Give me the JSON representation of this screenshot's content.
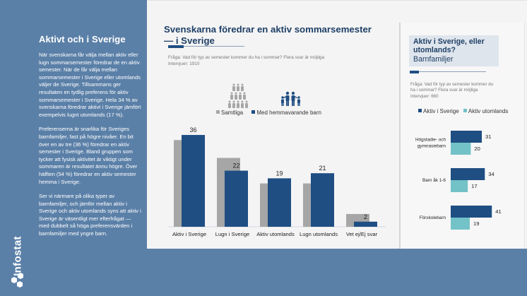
{
  "sidebar": {
    "heading": "Aktivt och i Sverige",
    "paragraphs": [
      "När svenskarna får välja mellan aktiv eller lugn sommarsemester föredrar de en aktiv semester. När de får välja mellan sommarsemester i Sverige eller utomlands väljer de Sverige. Tillsammans ger resultaten en tydlig preferens för aktiv sommarsemester i Sverige. Hela 34 % av svenskarna föredrar aktivt i Sverige jämfört exempelvis lugnt utomlands (17 %).",
      "Preferenserna är snarlika för Sveriges barnfamiljer, fast på högre nivåer. En bit över en av tre (36 %) föredrar en aktiv semester i Sverige. Bland gruppen som tycker att fysisk aktivitet är viktigt under sommaren är resultatet ännu högre. Över hälften (54 %) föredrar en aktiv semester hemma i Sverige.",
      "Ser vi närmare på olika typer av barnfamiljer, och jämför mellan aktiv i Sverige och aktiv utomlands syns att aktiv i Sverige är väsentligt mer efterfrågat — med dubbelt så höga preferensvärden i barnfamiljer med yngre barn."
    ],
    "logo_text": "Infostat"
  },
  "colors": {
    "background": "#5b80a8",
    "dark_blue": "#1f4e82",
    "gray": "#a6a6a6",
    "teal": "#73c2c8",
    "title_blue": "#1e3f66"
  },
  "chart_data": [
    {
      "type": "bar",
      "title": "Svenskarna föredrar en aktiv sommarsemester — i Sverige",
      "subtitle_lines": [
        "Fråga: Vad för typ av semester kommer du ha i sommar? Flera svar är möjliga",
        "Intervjuer: 1910"
      ],
      "categories": [
        "Aktiv i Sverige",
        "Lugn i Sverige",
        "Aktiv utomlands",
        "Lugn utomlands",
        "Vet ej/Ej svar"
      ],
      "series": [
        {
          "name": "Samtliga",
          "icon": "crowd-icon",
          "values": [
            34,
            27,
            17,
            17,
            5
          ],
          "labeled": false
        },
        {
          "name": "Med hemmavarande barn",
          "icon": "family-icon",
          "values": [
            36,
            22,
            19,
            21,
            2
          ],
          "labeled": true
        }
      ],
      "ylim": [
        0,
        40
      ],
      "legend": "top",
      "grid": false,
      "xlabel": "",
      "ylabel": ""
    },
    {
      "type": "bar",
      "orientation": "horizontal",
      "title": "Aktiv i Sverige, eller utomlands?",
      "subtitle": "Barnfamiljer",
      "question_lines": [
        "Fråga: Vad för typ av semester kommer du",
        "ha i sommar? Flera svar är möjliga",
        "Intervjuer: 660"
      ],
      "categories": [
        "Högstadie- och gymnasiebarn",
        "Barn åk 1-6",
        "Förskolebarn"
      ],
      "category_lines": [
        [
          "Högstadie- och",
          "gymnasiebarn"
        ],
        [
          "Barn åk 1-6"
        ],
        [
          "Förskolebarn"
        ]
      ],
      "series": [
        {
          "name": "Aktiv i Sverige",
          "values": [
            31,
            34,
            41
          ]
        },
        {
          "name": "Aktiv utomlands",
          "values": [
            20,
            17,
            19
          ]
        }
      ],
      "xlim": [
        0,
        45
      ],
      "legend": "top",
      "grid": false
    }
  ]
}
